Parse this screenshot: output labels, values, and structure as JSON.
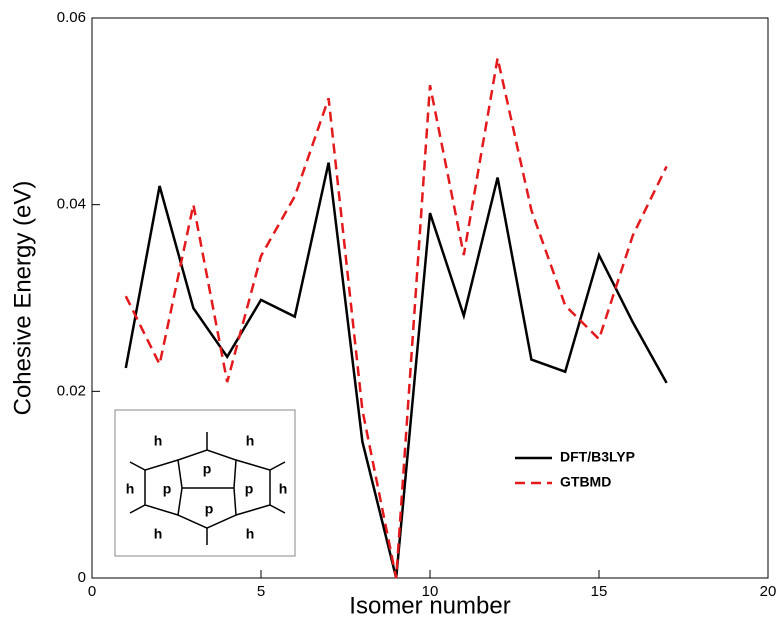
{
  "chart_data": {
    "type": "line",
    "xlabel": "Isomer number",
    "ylabel": "Cohesive Energy (eV)",
    "x": [
      1,
      2,
      3,
      4,
      5,
      6,
      7,
      8,
      9,
      10,
      11,
      12,
      13,
      14,
      15,
      16,
      17
    ],
    "series": [
      {
        "name": "DFT/B3LYP",
        "color": "#000000",
        "dash": false,
        "values": [
          0.0225,
          0.042,
          0.0289,
          0.0237,
          0.0298,
          0.028,
          0.0445,
          0.0146,
          0,
          0.0391,
          0.0281,
          0.0429,
          0.0234,
          0.0221,
          0.0346,
          0.0274,
          0.0209
        ]
      },
      {
        "name": "GTBMD",
        "color": "#e3191c",
        "dash": true,
        "values": [
          0.0302,
          0.0229,
          0.04,
          0.021,
          0.0345,
          0.0409,
          0.0514,
          0.018,
          0,
          0.0528,
          0.0346,
          0.0557,
          0.0394,
          0.0292,
          0.0256,
          0.0367,
          0.0441
        ]
      }
    ],
    "xlim": [
      0,
      20
    ],
    "xticks": [
      0,
      5,
      10,
      15,
      20
    ],
    "ylim": [
      0,
      0.06
    ],
    "yticks": [
      0,
      0.02,
      0.04,
      0.06
    ],
    "grid": false
  },
  "inset": {
    "labels": [
      "h",
      "h",
      "h",
      "h",
      "h",
      "h",
      "p",
      "p",
      "p",
      "p"
    ]
  }
}
